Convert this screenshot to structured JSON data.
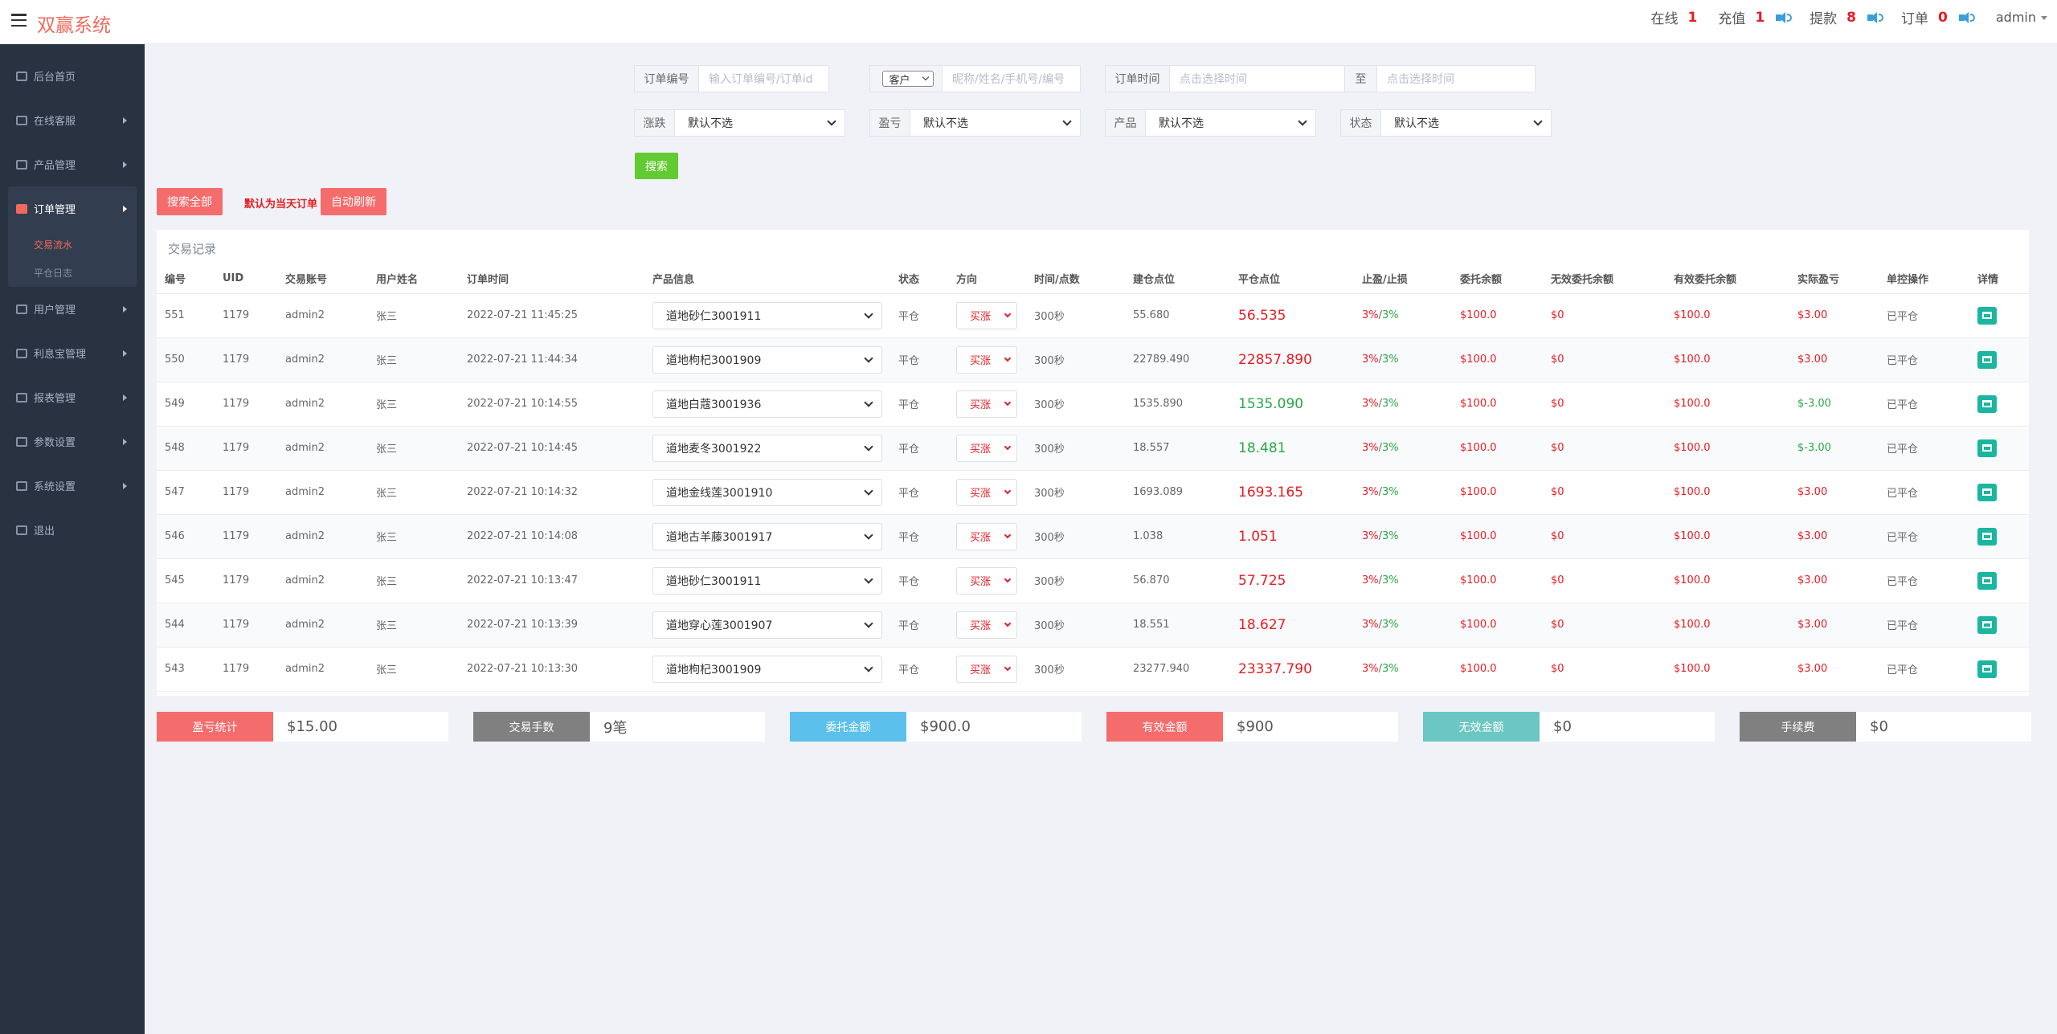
{
  "header": {
    "brand": "双赢系统",
    "stats": [
      {
        "label": "在线",
        "value": "1",
        "sound": false
      },
      {
        "label": "充值",
        "value": "1",
        "sound": true
      },
      {
        "label": "提款",
        "value": "8",
        "sound": true
      },
      {
        "label": "订单",
        "value": "0",
        "sound": true
      }
    ],
    "user": "admin"
  },
  "sidebar": {
    "items": [
      {
        "label": "后台首页"
      },
      {
        "label": "在线客服"
      },
      {
        "label": "产品管理"
      },
      {
        "label": "订单管理"
      },
      {
        "label": "用户管理"
      },
      {
        "label": "利息宝管理"
      },
      {
        "label": "报表管理"
      },
      {
        "label": "参数设置"
      },
      {
        "label": "系统设置"
      },
      {
        "label": "退出"
      }
    ],
    "subitems": [
      {
        "label": "交易流水"
      },
      {
        "label": "平仓日志"
      }
    ]
  },
  "filters": {
    "order_no_label": "订单编号",
    "order_no_placeholder": "输入订单编号/订单id",
    "customer_select": "客户",
    "customer_placeholder": "昵称/姓名/手机号/编号",
    "time_label": "订单时间",
    "time_start_placeholder": "点击选择时间",
    "to_label": "至",
    "time_end_placeholder": "点击选择时间",
    "rise_label": "涨跌",
    "pnl_label": "盈亏",
    "product_label": "产品",
    "status_label": "状态",
    "default_option": "默认不选",
    "search_button": "搜索",
    "search_all_button": "搜索全部",
    "default_hint": "默认为当天订单",
    "auto_refresh_button": "自动刷新"
  },
  "table": {
    "title": "交易记录",
    "columns": [
      "编号",
      "UID",
      "交易账号",
      "用户姓名",
      "订单时间",
      "产品信息",
      "状态",
      "方向",
      "时间/点数",
      "建仓点位",
      "平仓点位",
      "止盈/止损",
      "委托余额",
      "无效委托余额",
      "有效委托余额",
      "实际盈亏",
      "单控操作",
      "详情"
    ],
    "rows": [
      {
        "id": "551",
        "uid": "1179",
        "account": "admin2",
        "name": "张三",
        "time": "2022-07-21 11:45:25",
        "product": "道地砂仁3001911",
        "status": "平仓",
        "direction": "买涨",
        "duration": "300秒",
        "open": "55.680",
        "close": "56.535",
        "close_color": "red",
        "tp": "3%",
        "sl": "3%",
        "entrust": "$100.0",
        "invalid": "$0",
        "valid": "$100.0",
        "pnl": "$3.00",
        "pnl_color": "red",
        "op": "已平仓"
      },
      {
        "id": "550",
        "uid": "1179",
        "account": "admin2",
        "name": "张三",
        "time": "2022-07-21 11:44:34",
        "product": "道地枸杞3001909",
        "status": "平仓",
        "direction": "买涨",
        "duration": "300秒",
        "open": "22789.490",
        "close": "22857.890",
        "close_color": "red",
        "tp": "3%",
        "sl": "3%",
        "entrust": "$100.0",
        "invalid": "$0",
        "valid": "$100.0",
        "pnl": "$3.00",
        "pnl_color": "red",
        "op": "已平仓"
      },
      {
        "id": "549",
        "uid": "1179",
        "account": "admin2",
        "name": "张三",
        "time": "2022-07-21 10:14:55",
        "product": "道地白蔻3001936",
        "status": "平仓",
        "direction": "买涨",
        "duration": "300秒",
        "open": "1535.890",
        "close": "1535.090",
        "close_color": "green",
        "tp": "3%",
        "sl": "3%",
        "entrust": "$100.0",
        "invalid": "$0",
        "valid": "$100.0",
        "pnl": "$-3.00",
        "pnl_color": "green",
        "op": "已平仓"
      },
      {
        "id": "548",
        "uid": "1179",
        "account": "admin2",
        "name": "张三",
        "time": "2022-07-21 10:14:45",
        "product": "道地麦冬3001922",
        "status": "平仓",
        "direction": "买涨",
        "duration": "300秒",
        "open": "18.557",
        "close": "18.481",
        "close_color": "green",
        "tp": "3%",
        "sl": "3%",
        "entrust": "$100.0",
        "invalid": "$0",
        "valid": "$100.0",
        "pnl": "$-3.00",
        "pnl_color": "green",
        "op": "已平仓"
      },
      {
        "id": "547",
        "uid": "1179",
        "account": "admin2",
        "name": "张三",
        "time": "2022-07-21 10:14:32",
        "product": "道地金线莲3001910",
        "status": "平仓",
        "direction": "买涨",
        "duration": "300秒",
        "open": "1693.089",
        "close": "1693.165",
        "close_color": "red",
        "tp": "3%",
        "sl": "3%",
        "entrust": "$100.0",
        "invalid": "$0",
        "valid": "$100.0",
        "pnl": "$3.00",
        "pnl_color": "red",
        "op": "已平仓"
      },
      {
        "id": "546",
        "uid": "1179",
        "account": "admin2",
        "name": "张三",
        "time": "2022-07-21 10:14:08",
        "product": "道地古羊藤3001917",
        "status": "平仓",
        "direction": "买涨",
        "duration": "300秒",
        "open": "1.038",
        "close": "1.051",
        "close_color": "red",
        "tp": "3%",
        "sl": "3%",
        "entrust": "$100.0",
        "invalid": "$0",
        "valid": "$100.0",
        "pnl": "$3.00",
        "pnl_color": "red",
        "op": "已平仓"
      },
      {
        "id": "545",
        "uid": "1179",
        "account": "admin2",
        "name": "张三",
        "time": "2022-07-21 10:13:47",
        "product": "道地砂仁3001911",
        "status": "平仓",
        "direction": "买涨",
        "duration": "300秒",
        "open": "56.870",
        "close": "57.725",
        "close_color": "red",
        "tp": "3%",
        "sl": "3%",
        "entrust": "$100.0",
        "invalid": "$0",
        "valid": "$100.0",
        "pnl": "$3.00",
        "pnl_color": "red",
        "op": "已平仓"
      },
      {
        "id": "544",
        "uid": "1179",
        "account": "admin2",
        "name": "张三",
        "time": "2022-07-21 10:13:39",
        "product": "道地穿心莲3001907",
        "status": "平仓",
        "direction": "买涨",
        "duration": "300秒",
        "open": "18.551",
        "close": "18.627",
        "close_color": "red",
        "tp": "3%",
        "sl": "3%",
        "entrust": "$100.0",
        "invalid": "$0",
        "valid": "$100.0",
        "pnl": "$3.00",
        "pnl_color": "red",
        "op": "已平仓"
      },
      {
        "id": "543",
        "uid": "1179",
        "account": "admin2",
        "name": "张三",
        "time": "2022-07-21 10:13:30",
        "product": "道地枸杞3001909",
        "status": "平仓",
        "direction": "买涨",
        "duration": "300秒",
        "open": "23277.940",
        "close": "23337.790",
        "close_color": "red",
        "tp": "3%",
        "sl": "3%",
        "entrust": "$100.0",
        "invalid": "$0",
        "valid": "$100.0",
        "pnl": "$3.00",
        "pnl_color": "red",
        "op": "已平仓"
      }
    ]
  },
  "summary": [
    {
      "label": "盈亏统计",
      "value": "$15.00",
      "color": "#f56c6c"
    },
    {
      "label": "交易手数",
      "value": "9笔",
      "color": "#808080"
    },
    {
      "label": "委托金额",
      "value": "$900.0",
      "color": "#5bc0eb"
    },
    {
      "label": "有效金额",
      "value": "$900",
      "color": "#f56c6c"
    },
    {
      "label": "无效金额",
      "value": "$0",
      "color": "#6cc6c3"
    },
    {
      "label": "手续费",
      "value": "$0",
      "color": "#808080"
    }
  ]
}
